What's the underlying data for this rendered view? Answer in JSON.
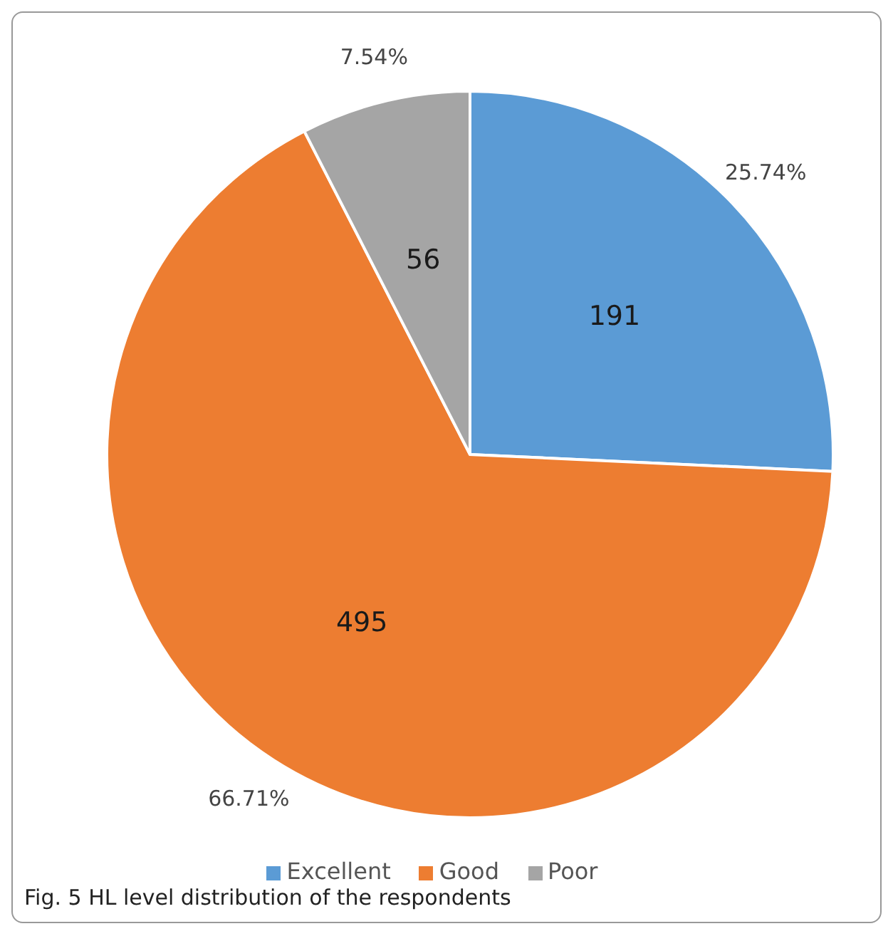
{
  "chart_data": {
    "type": "pie",
    "categories": [
      "Excellent",
      "Good",
      "Poor"
    ],
    "values": [
      25.74,
      66.71,
      7.54
    ],
    "colors": [
      "#5b9bd5",
      "#ed7d31",
      "#a5a5a5"
    ],
    "value_labels": [
      "25.74%",
      "66.71%",
      "7.54%"
    ],
    "legend": "bottom",
    "annotations": [
      {
        "text": "191",
        "x": "Excellent"
      },
      {
        "text": "495",
        "x": "Good"
      },
      {
        "text": "56",
        "x": "Poor"
      },
      "Fig. 5 HL level distribution of the respondents"
    ]
  }
}
